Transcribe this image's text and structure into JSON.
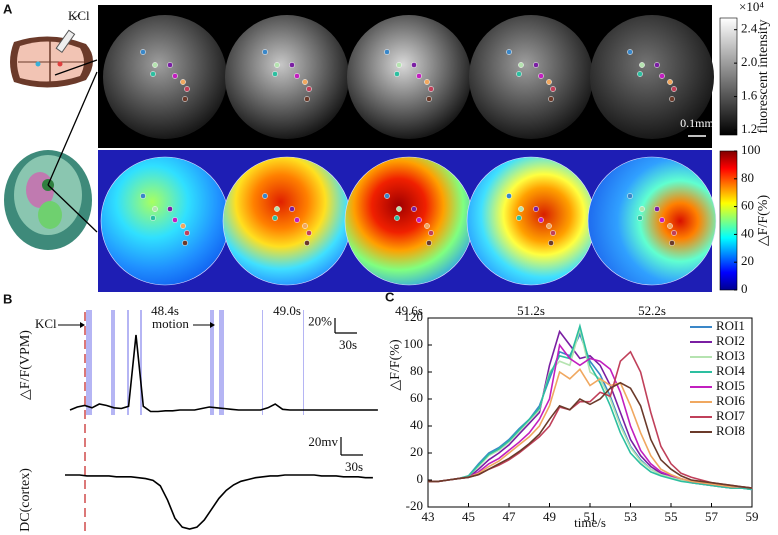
{
  "panel_labels": [
    "A",
    "B",
    "C"
  ],
  "panel_a": {
    "kcl_label": "KCl",
    "times": [
      "48.4s",
      "49.0s",
      "49.6s",
      "51.2s",
      "52.2s"
    ],
    "scale_bar": "0.1mm"
  },
  "panel_b": {
    "kcl_label": "KCl",
    "motion_label": "motion"
  },
  "chart_data": [
    {
      "type": "colorbar",
      "ylabel": "fluorescent intensity",
      "multiplier": "×10⁴",
      "ylim": [
        1.14,
        2.54
      ],
      "yticks": [
        2.4,
        {
          "value": 2.0,
          "label": "2.0"
        },
        1.6,
        1.2
      ],
      "colors": [
        "#000000",
        "#ffffff"
      ]
    },
    {
      "type": "colorbar",
      "ylabel": "△F/F(%)",
      "ylim": [
        0,
        100
      ],
      "yticks": [
        0,
        20,
        40,
        60,
        80,
        100
      ],
      "colors": [
        "#00008f",
        "#0000ff",
        "#0080ff",
        "#00ffff",
        "#80ff80",
        "#ffff00",
        "#ff8000",
        "#ff0000",
        "#800000"
      ]
    },
    {
      "type": "trace",
      "ylabel": "△F/F(VPM)",
      "color": "#000000",
      "scale_y": {
        "value": 20,
        "label": "20%"
      },
      "scale_x": {
        "value": 30,
        "label": "30s"
      },
      "x": [
        0,
        10,
        20,
        30,
        40,
        50,
        60,
        70,
        80,
        90,
        100,
        110,
        120,
        130,
        140,
        150,
        160,
        170,
        180,
        190,
        200,
        210,
        220,
        230,
        240,
        250,
        260,
        270,
        280,
        290,
        300,
        310,
        320,
        330,
        340,
        350,
        360,
        370,
        380,
        390,
        400,
        410,
        420
      ],
      "values": [
        0,
        4,
        6,
        3,
        8,
        6,
        3,
        2,
        5,
        100,
        5,
        -2,
        -2,
        -1,
        -1,
        0,
        0,
        0,
        2,
        4,
        3,
        2,
        1,
        0,
        0,
        0,
        0,
        3,
        8,
        1,
        0,
        0,
        0,
        0,
        0,
        0,
        0,
        0,
        0,
        0,
        0,
        0,
        0
      ]
    },
    {
      "type": "trace",
      "ylabel": "DC(cortex)",
      "color": "#000000",
      "scale_y": {
        "value": 20,
        "label": "20mv"
      },
      "scale_x": {
        "value": 30,
        "label": "30s"
      },
      "x": [
        0,
        10,
        20,
        30,
        40,
        50,
        60,
        70,
        80,
        90,
        100,
        110,
        120,
        130,
        140,
        150,
        160,
        170,
        180,
        190,
        200,
        210,
        220,
        230,
        240,
        250,
        260,
        270,
        280,
        290,
        300,
        310,
        320,
        330,
        340,
        350,
        360,
        370,
        380,
        390,
        400,
        410,
        420
      ],
      "values": [
        0,
        0,
        0,
        -1,
        -1,
        -1,
        -1,
        -2,
        -2,
        -2,
        -3,
        -4,
        -6,
        -12,
        -28,
        -48,
        -58,
        -60,
        -58,
        -50,
        -38,
        -26,
        -17,
        -11,
        -7,
        -5,
        -3,
        -2,
        -1,
        -1,
        0,
        0,
        0,
        0,
        0,
        -1,
        -1,
        -1,
        -2,
        -2,
        -2,
        -3,
        -3
      ]
    },
    {
      "type": "line",
      "xlabel": "time/s",
      "ylabel": "△F/F(%)",
      "xlim": [
        43,
        59
      ],
      "ylim": [
        -20,
        120
      ],
      "xticks": [
        43,
        45,
        47,
        49,
        51,
        53,
        55,
        57,
        59
      ],
      "yticks": [
        -20,
        0,
        20,
        40,
        60,
        80,
        100,
        120
      ],
      "x": [
        43,
        43.5,
        44,
        44.5,
        45,
        45.5,
        46,
        46.5,
        47,
        47.5,
        48,
        48.5,
        49,
        49.5,
        50,
        50.5,
        51,
        51.5,
        52,
        52.5,
        53,
        53.5,
        54,
        54.5,
        55,
        55.5,
        56,
        56.5,
        57,
        57.5,
        58,
        58.5,
        59
      ],
      "series": [
        {
          "name": "ROI1",
          "color": "#3a87c8",
          "values": [
            -1,
            -1,
            0,
            1,
            3,
            12,
            20,
            24,
            30,
            38,
            45,
            55,
            75,
            95,
            92,
            108,
            88,
            78,
            62,
            42,
            25,
            15,
            8,
            4,
            2,
            0,
            -2,
            -3,
            -4,
            -5,
            -6,
            -6,
            -7
          ]
        },
        {
          "name": "ROI2",
          "color": "#7a1fa2",
          "values": [
            -1,
            -1,
            0,
            1,
            2,
            8,
            15,
            20,
            26,
            34,
            42,
            50,
            85,
            110,
            100,
            90,
            92,
            85,
            70,
            50,
            30,
            18,
            10,
            5,
            2,
            0,
            -2,
            -3,
            -4,
            -5,
            -6,
            -6,
            -7
          ]
        },
        {
          "name": "ROI3",
          "color": "#b5e3b0",
          "values": [
            -1,
            -1,
            0,
            1,
            3,
            10,
            18,
            22,
            28,
            36,
            44,
            52,
            80,
            88,
            85,
            112,
            80,
            75,
            60,
            40,
            24,
            14,
            8,
            4,
            2,
            0,
            -2,
            -3,
            -4,
            -5,
            -6,
            -6,
            -7
          ]
        },
        {
          "name": "ROI4",
          "color": "#2dbfa0",
          "values": [
            -1,
            -1,
            0,
            1,
            3,
            11,
            19,
            23,
            29,
            37,
            45,
            53,
            78,
            92,
            90,
            114,
            85,
            72,
            55,
            35,
            20,
            12,
            6,
            3,
            1,
            -1,
            -2,
            -3,
            -4,
            -5,
            -6,
            -6,
            -7
          ]
        },
        {
          "name": "ROI5",
          "color": "#c21fbf",
          "values": [
            -1,
            -1,
            0,
            1,
            2,
            6,
            12,
            16,
            22,
            28,
            35,
            45,
            60,
            100,
            90,
            85,
            90,
            88,
            82,
            65,
            40,
            22,
            12,
            6,
            3,
            1,
            -1,
            -2,
            -3,
            -4,
            -5,
            -5,
            -6
          ]
        },
        {
          "name": "ROI6",
          "color": "#f0a860",
          "values": [
            -1,
            -1,
            0,
            1,
            2,
            5,
            10,
            14,
            20,
            26,
            32,
            40,
            55,
            80,
            75,
            82,
            70,
            75,
            70,
            72,
            55,
            35,
            18,
            8,
            4,
            1,
            -1,
            -2,
            -3,
            -4,
            -5,
            -5,
            -6
          ]
        },
        {
          "name": "ROI7",
          "color": "#c0405a",
          "values": [
            -1,
            -1,
            0,
            1,
            2,
            4,
            8,
            11,
            15,
            20,
            26,
            32,
            40,
            54,
            52,
            58,
            58,
            65,
            62,
            88,
            95,
            80,
            50,
            25,
            12,
            5,
            2,
            0,
            -2,
            -3,
            -4,
            -5,
            -6
          ]
        },
        {
          "name": "ROI8",
          "color": "#6b3a2a",
          "values": [
            -1,
            -1,
            0,
            1,
            2,
            4,
            8,
            12,
            16,
            21,
            27,
            34,
            45,
            55,
            52,
            60,
            56,
            60,
            68,
            72,
            68,
            55,
            30,
            15,
            8,
            3,
            0,
            -1,
            -2,
            -3,
            -4,
            -5,
            -6
          ]
        }
      ]
    }
  ]
}
